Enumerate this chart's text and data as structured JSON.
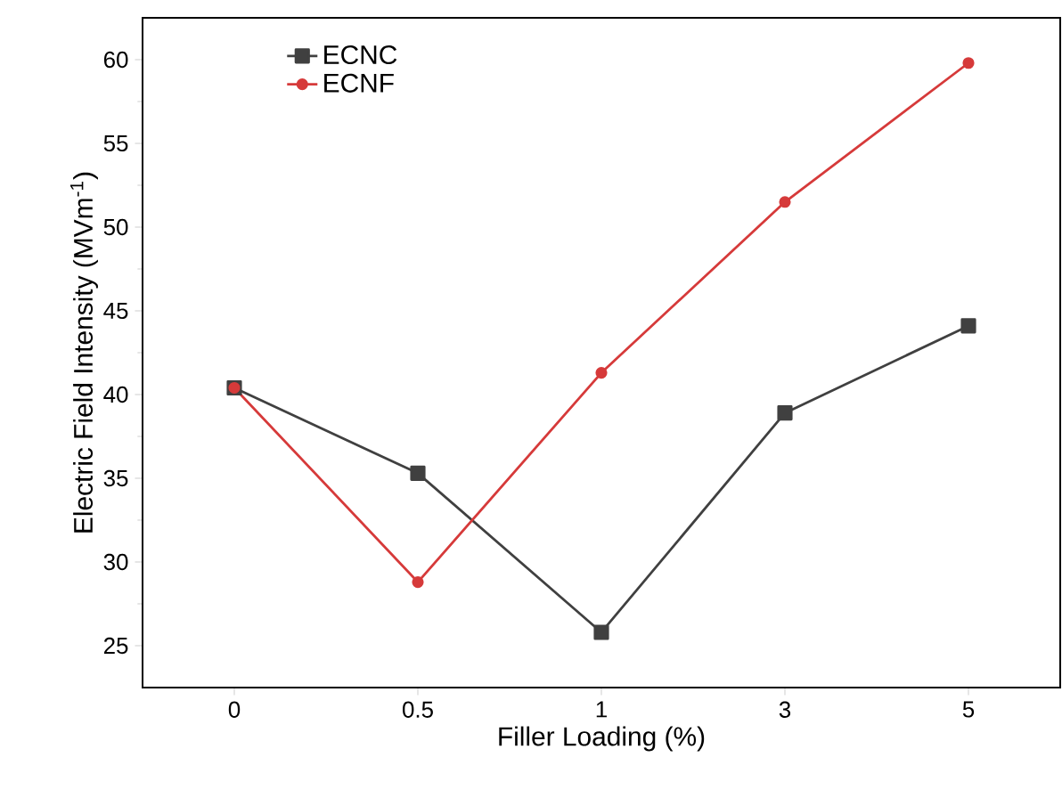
{
  "chart_data": {
    "type": "line",
    "xlabel": "Filler Loading (%)",
    "ylabel": "Electric Field Intensity (MVm$^{-1}$)",
    "categories": [
      "0",
      "0.5",
      "1",
      "3",
      "5"
    ],
    "series": [
      {
        "name": "ECNC",
        "color": "#404040",
        "marker": "square",
        "values": [
          40.4,
          35.3,
          25.8,
          38.9,
          44.1
        ]
      },
      {
        "name": "ECNF",
        "color": "#d63a3a",
        "marker": "circle",
        "values": [
          40.4,
          28.8,
          41.3,
          51.5,
          59.8
        ]
      }
    ],
    "ylim": [
      22.5,
      62.5
    ],
    "yticks": [
      25,
      30,
      35,
      40,
      45,
      50,
      55,
      60
    ],
    "legend": "top left",
    "grid": false
  }
}
